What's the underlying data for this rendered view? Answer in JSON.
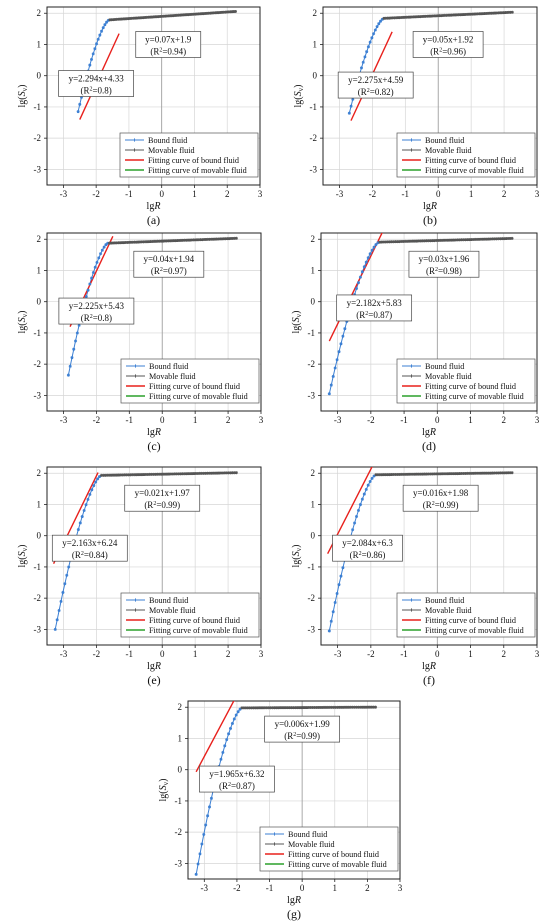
{
  "chart_data": [
    {
      "type": "line",
      "panel_label": "(a)",
      "xlabel": "lgR",
      "ylabel": "lg(Sv)",
      "xlim": [
        -3.5,
        3
      ],
      "ylim": [
        -3.5,
        2.2
      ],
      "xticks": [
        -3,
        -2,
        -1,
        0,
        1,
        2,
        3
      ],
      "yticks": [
        -3,
        -2,
        -1,
        0,
        1,
        2
      ],
      "grid": true,
      "legend_position": "bottom-right",
      "legend": [
        "Bound fluid",
        "Movable fluid",
        "Fitting curve of bound fluid",
        "Fitting curve of movable fluid"
      ],
      "legend_colors": [
        "#3b7fd3",
        "#555555",
        "#e8201c",
        "#2ca02c"
      ],
      "curve": {
        "x_start": -2.55,
        "x_break": -1.6,
        "x_end": 2.25,
        "y_start": -1.15
      },
      "fit_bound": {
        "slope": 2.294,
        "intercept": 4.33,
        "x_range": [
          -2.5,
          -1.3
        ]
      },
      "fit_movable": {
        "slope": 0.07,
        "intercept": 1.9,
        "x_range": [
          -1.6,
          2.25
        ]
      },
      "annotations": [
        {
          "eq": "y=0.07x+1.9",
          "r2": "0.94",
          "at": [
            0.2,
            1.0
          ]
        },
        {
          "eq": "y=2.294x+4.33",
          "r2": "0.8",
          "at": [
            -2.0,
            -0.25
          ]
        }
      ]
    },
    {
      "type": "line",
      "panel_label": "(b)",
      "xlabel": "lgR",
      "ylabel": "lg(Sv)",
      "xlim": [
        -3.5,
        3
      ],
      "ylim": [
        -3.5,
        2.2
      ],
      "xticks": [
        -3,
        -2,
        -1,
        0,
        1,
        2,
        3
      ],
      "yticks": [
        -3,
        -2,
        -1,
        0,
        1,
        2
      ],
      "grid": true,
      "legend_position": "bottom-right",
      "legend": [
        "Bound fluid",
        "Movable fluid",
        "Fitting curve of bound fluid",
        "Fitting curve of movable fluid"
      ],
      "legend_colors": [
        "#3b7fd3",
        "#555555",
        "#e8201c",
        "#2ca02c"
      ],
      "curve": {
        "x_start": -2.7,
        "x_break": -1.65,
        "x_end": 2.25,
        "y_start": -1.2
      },
      "fit_bound": {
        "slope": 2.275,
        "intercept": 4.59,
        "x_range": [
          -2.65,
          -1.4
        ]
      },
      "fit_movable": {
        "slope": 0.05,
        "intercept": 1.92,
        "x_range": [
          -1.65,
          2.25
        ]
      },
      "annotations": [
        {
          "eq": "y=0.05x+1.92",
          "r2": "0.96",
          "at": [
            0.3,
            1.0
          ]
        },
        {
          "eq": "y=2.275x+4.59",
          "r2": "0.82",
          "at": [
            -1.9,
            -0.3
          ]
        }
      ]
    },
    {
      "type": "line",
      "panel_label": "(c)",
      "xlabel": "lgR",
      "ylabel": "lg(Sv)",
      "xlim": [
        -3.5,
        3
      ],
      "ylim": [
        -3.5,
        2.2
      ],
      "xticks": [
        -3,
        -2,
        -1,
        0,
        1,
        2,
        3
      ],
      "yticks": [
        -3,
        -2,
        -1,
        0,
        1,
        2
      ],
      "grid": true,
      "legend_position": "bottom-right",
      "legend": [
        "Bound fluid",
        "Movable fluid",
        "Fitting curve of bound fluid",
        "Fitting curve of movable fluid"
      ],
      "legend_colors": [
        "#3b7fd3",
        "#555555",
        "#e8201c",
        "#2ca02c"
      ],
      "curve": {
        "x_start": -2.85,
        "x_break": -1.65,
        "x_end": 2.25,
        "y_start": -2.35
      },
      "fit_bound": {
        "slope": 2.225,
        "intercept": 5.43,
        "x_range": [
          -2.8,
          -1.5
        ]
      },
      "fit_movable": {
        "slope": 0.04,
        "intercept": 1.94,
        "x_range": [
          -1.65,
          2.25
        ]
      },
      "annotations": [
        {
          "eq": "y=0.04x+1.94",
          "r2": "0.97",
          "at": [
            0.2,
            1.2
          ]
        },
        {
          "eq": "y=2.225x+5.43",
          "r2": "0.8",
          "at": [
            -2.0,
            -0.3
          ]
        }
      ]
    },
    {
      "type": "line",
      "panel_label": "(d)",
      "xlabel": "lgR",
      "ylabel": "lg(Sv)",
      "xlim": [
        -3.5,
        3
      ],
      "ylim": [
        -3.5,
        2.2
      ],
      "xticks": [
        -3,
        -2,
        -1,
        0,
        1,
        2,
        3
      ],
      "yticks": [
        -3,
        -2,
        -1,
        0,
        1,
        2
      ],
      "grid": true,
      "legend_position": "bottom-right",
      "legend": [
        "Bound fluid",
        "Movable fluid",
        "Fitting curve of bound fluid",
        "Fitting curve of movable fluid"
      ],
      "legend_colors": [
        "#3b7fd3",
        "#555555",
        "#e8201c",
        "#2ca02c"
      ],
      "curve": {
        "x_start": -3.25,
        "x_break": -1.75,
        "x_end": 2.25,
        "y_start": -2.95
      },
      "fit_bound": {
        "slope": 2.182,
        "intercept": 5.83,
        "x_range": [
          -3.25,
          -1.6
        ]
      },
      "fit_movable": {
        "slope": 0.03,
        "intercept": 1.96,
        "x_range": [
          -1.75,
          2.25
        ]
      },
      "annotations": [
        {
          "eq": "y=0.03x+1.96",
          "r2": "0.98",
          "at": [
            0.2,
            1.2
          ]
        },
        {
          "eq": "y=2.182x+5.83",
          "r2": "0.87",
          "at": [
            -1.9,
            -0.2
          ]
        }
      ]
    },
    {
      "type": "line",
      "panel_label": "(e)",
      "xlabel": "lgR",
      "ylabel": "lg(Sv)",
      "xlim": [
        -3.5,
        3
      ],
      "ylim": [
        -3.5,
        2.2
      ],
      "xticks": [
        -3,
        -2,
        -1,
        0,
        1,
        2,
        3
      ],
      "yticks": [
        -3,
        -2,
        -1,
        0,
        1,
        2
      ],
      "grid": true,
      "legend_position": "bottom-right",
      "legend": [
        "Bound fluid",
        "Movable fluid",
        "Fitting curve of bound fluid",
        "Fitting curve of movable fluid"
      ],
      "legend_colors": [
        "#3b7fd3",
        "#555555",
        "#e8201c",
        "#2ca02c"
      ],
      "curve": {
        "x_start": -3.25,
        "x_break": -1.85,
        "x_end": 2.25,
        "y_start": -3.0
      },
      "fit_bound": {
        "slope": 2.163,
        "intercept": 6.24,
        "x_range": [
          -3.3,
          -1.95
        ]
      },
      "fit_movable": {
        "slope": 0.021,
        "intercept": 1.97,
        "x_range": [
          -1.85,
          2.25
        ]
      },
      "annotations": [
        {
          "eq": "y=0.021x+1.97",
          "r2": "0.99",
          "at": [
            0.0,
            1.2
          ]
        },
        {
          "eq": "y=2.163x+6.24",
          "r2": "0.84",
          "at": [
            -2.2,
            -0.4
          ]
        }
      ]
    },
    {
      "type": "line",
      "panel_label": "(f)",
      "xlabel": "lgR",
      "ylabel": "lg(Sv)",
      "xlim": [
        -3.5,
        3
      ],
      "ylim": [
        -3.5,
        2.2
      ],
      "xticks": [
        -3,
        -2,
        -1,
        0,
        1,
        2,
        3
      ],
      "yticks": [
        -3,
        -2,
        -1,
        0,
        1,
        2
      ],
      "grid": true,
      "legend_position": "bottom-right",
      "legend": [
        "Bound fluid",
        "Movable fluid",
        "Fitting curve of bound fluid",
        "Fitting curve of movable fluid"
      ],
      "legend_colors": [
        "#3b7fd3",
        "#555555",
        "#e8201c",
        "#2ca02c"
      ],
      "curve": {
        "x_start": -3.25,
        "x_break": -1.85,
        "x_end": 2.25,
        "y_start": -3.05
      },
      "fit_bound": {
        "slope": 2.084,
        "intercept": 6.3,
        "x_range": [
          -3.3,
          -1.9
        ]
      },
      "fit_movable": {
        "slope": 0.016,
        "intercept": 1.98,
        "x_range": [
          -1.85,
          2.25
        ]
      },
      "annotations": [
        {
          "eq": "y=0.016x+1.98",
          "r2": "0.99",
          "at": [
            0.1,
            1.2
          ]
        },
        {
          "eq": "y=2.084x+6.3",
          "r2": "0.86",
          "at": [
            -2.1,
            -0.4
          ]
        }
      ]
    },
    {
      "type": "line",
      "panel_label": "(g)",
      "xlabel": "lgR",
      "ylabel": "lg(Sv)",
      "xlim": [
        -3.5,
        3
      ],
      "ylim": [
        -3.5,
        2.2
      ],
      "xticks": [
        -3,
        -2,
        -1,
        0,
        1,
        2,
        3
      ],
      "yticks": [
        -3,
        -2,
        -1,
        0,
        1,
        2
      ],
      "grid": true,
      "legend_position": "bottom-right",
      "legend": [
        "Bound fluid",
        "Movable fluid",
        "Fitting curve of bound fluid",
        "Fitting curve of movable fluid"
      ],
      "legend_colors": [
        "#3b7fd3",
        "#555555",
        "#e8201c",
        "#2ca02c"
      ],
      "curve": {
        "x_start": -3.25,
        "x_break": -1.85,
        "x_end": 2.25,
        "y_start": -3.35
      },
      "fit_bound": {
        "slope": 1.965,
        "intercept": 6.32,
        "x_range": [
          -3.25,
          -1.9
        ]
      },
      "fit_movable": {
        "slope": 0.006,
        "intercept": 1.99,
        "x_range": [
          -1.85,
          2.25
        ]
      },
      "annotations": [
        {
          "eq": "y=0.006x+1.99",
          "r2": "0.99",
          "at": [
            0.0,
            1.3
          ]
        },
        {
          "eq": "y=1.965x+6.32",
          "r2": "0.87",
          "at": [
            -2.0,
            -0.3
          ]
        }
      ]
    }
  ]
}
